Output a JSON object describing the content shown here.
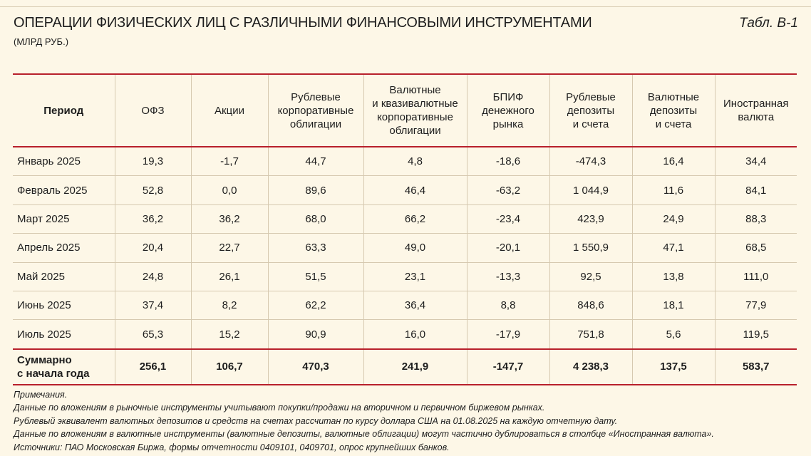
{
  "header": {
    "title": "ОПЕРАЦИИ ФИЗИЧЕСКИХ ЛИЦ С РАЗЛИЧНЫМИ ФИНАНСОВЫМИ ИНСТРУМЕНТАМИ",
    "subtitle": "(МЛРД РУБ.)",
    "table_tag": "Табл. В-1"
  },
  "columns": [
    [
      "Период"
    ],
    [
      "ОФЗ"
    ],
    [
      "Акции"
    ],
    [
      "Рублевые",
      "корпоративные",
      "облигации"
    ],
    [
      "Валютные",
      "и квазивалютные",
      "корпоративные",
      "облигации"
    ],
    [
      "БПИФ",
      "денежного",
      "рынка"
    ],
    [
      "Рублевые",
      "депозиты",
      "и счета"
    ],
    [
      "Валютные",
      "депозиты",
      "и счета"
    ],
    [
      "Иностранная",
      "валюта"
    ]
  ],
  "rows": [
    [
      "Январь 2025",
      "19,3",
      "-1,7",
      "44,7",
      "4,8",
      "-18,6",
      "-474,3",
      "16,4",
      "34,4"
    ],
    [
      "Февраль 2025",
      "52,8",
      "0,0",
      "89,6",
      "46,4",
      "-63,2",
      "1 044,9",
      "11,6",
      "84,1"
    ],
    [
      "Март 2025",
      "36,2",
      "36,2",
      "68,0",
      "66,2",
      "-23,4",
      "423,9",
      "24,9",
      "88,3"
    ],
    [
      "Апрель 2025",
      "20,4",
      "22,7",
      "63,3",
      "49,0",
      "-20,1",
      "1 550,9",
      "47,1",
      "68,5"
    ],
    [
      "Май 2025",
      "24,8",
      "26,1",
      "51,5",
      "23,1",
      "-13,3",
      "92,5",
      "13,8",
      "111,0"
    ],
    [
      "Июнь 2025",
      "37,4",
      "8,2",
      "62,2",
      "36,4",
      "8,8",
      "848,6",
      "18,1",
      "77,9"
    ],
    [
      "Июль 2025",
      "65,3",
      "15,2",
      "90,9",
      "16,0",
      "-17,9",
      "751,8",
      "5,6",
      "119,5"
    ]
  ],
  "total": {
    "label": [
      "Суммарно",
      "с начала года"
    ],
    "values": [
      "256,1",
      "106,7",
      "470,3",
      "241,9",
      "-147,7",
      "4 238,3",
      "137,5",
      "583,7"
    ]
  },
  "notes": [
    "Примечания.",
    "Данные по вложениям в рыночные инструменты учитывают покупки/продажи на вторичном и первичном биржевом рынках.",
    "Рублевый эквивалент валютных депозитов и средств на счетах рассчитан по курсу доллара США на 01.08.2025 на каждую отчетную дату.",
    "Данные по вложениям в валютные инструменты (валютные депозиты, валютные облигации) могут частично дублироваться в столбце «Иностранная валюта».",
    "Источники: ПАО Московская Биржа, формы отчетности 0409101, 0409701, опрос крупнейших банков."
  ],
  "colors": {
    "accent_rule": "#b8202b",
    "background": "#fdf7e7",
    "grid": "#d6c9b0"
  }
}
